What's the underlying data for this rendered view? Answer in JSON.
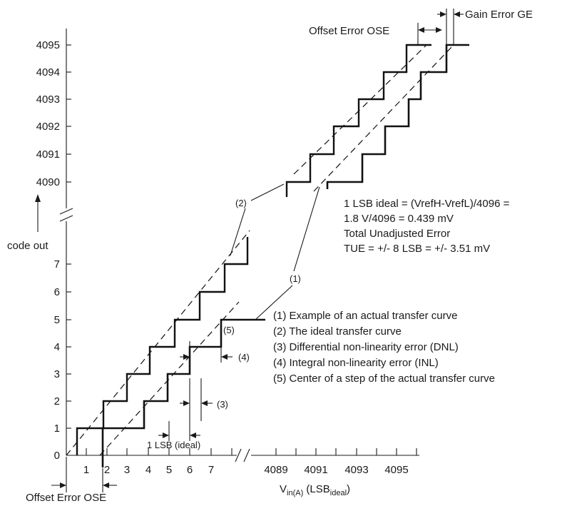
{
  "colors": {
    "ink": "#1a1a1a",
    "background": "#ffffff"
  },
  "y_axis": {
    "label": "code out",
    "lower_ticks": [
      "0",
      "1",
      "2",
      "3",
      "4",
      "5",
      "6",
      "7"
    ],
    "upper_ticks": [
      "4090",
      "4091",
      "4092",
      "4093",
      "4094",
      "4095"
    ]
  },
  "x_axis": {
    "lower_ticks": [
      "1",
      "2",
      "3",
      "4",
      "5",
      "6",
      "7"
    ],
    "upper_ticks": [
      "4089",
      "4091",
      "4093",
      "4095"
    ],
    "label_main": "V",
    "label_sub": "in(A)",
    "label_paren_open": " (LSB",
    "label_sub2": "ideal",
    "label_paren_close": ")"
  },
  "top_annotations": {
    "gain_error": "Gain Error GE",
    "offset_error_top": "Offset Error OSE"
  },
  "bottom_annotations": {
    "offset_error_bottom": "Offset Error OSE",
    "one_lsb_ideal": "1 LSB (ideal)"
  },
  "info_block": {
    "line1": "1 LSB ideal = (VrefH-VrefL)/4096 =",
    "line2": "1.8 V/4096 = 0.439 mV",
    "line3": "Total Unadjusted Error",
    "line4": "TUE = +/- 8 LSB = +/- 3.51 mV"
  },
  "callouts": {
    "c1_upper": "(1)",
    "c2_upper": "(2)",
    "c3": "(3)",
    "c4": "(4)",
    "c5": "(5)"
  },
  "legend": [
    "(1) Example of an actual transfer curve",
    "(2) The ideal transfer curve",
    "(3) Differential non-linearity error (DNL)",
    "(4) Integral non-linearity error (INL)",
    "(5) Center of a step of the actual transfer curve"
  ]
}
